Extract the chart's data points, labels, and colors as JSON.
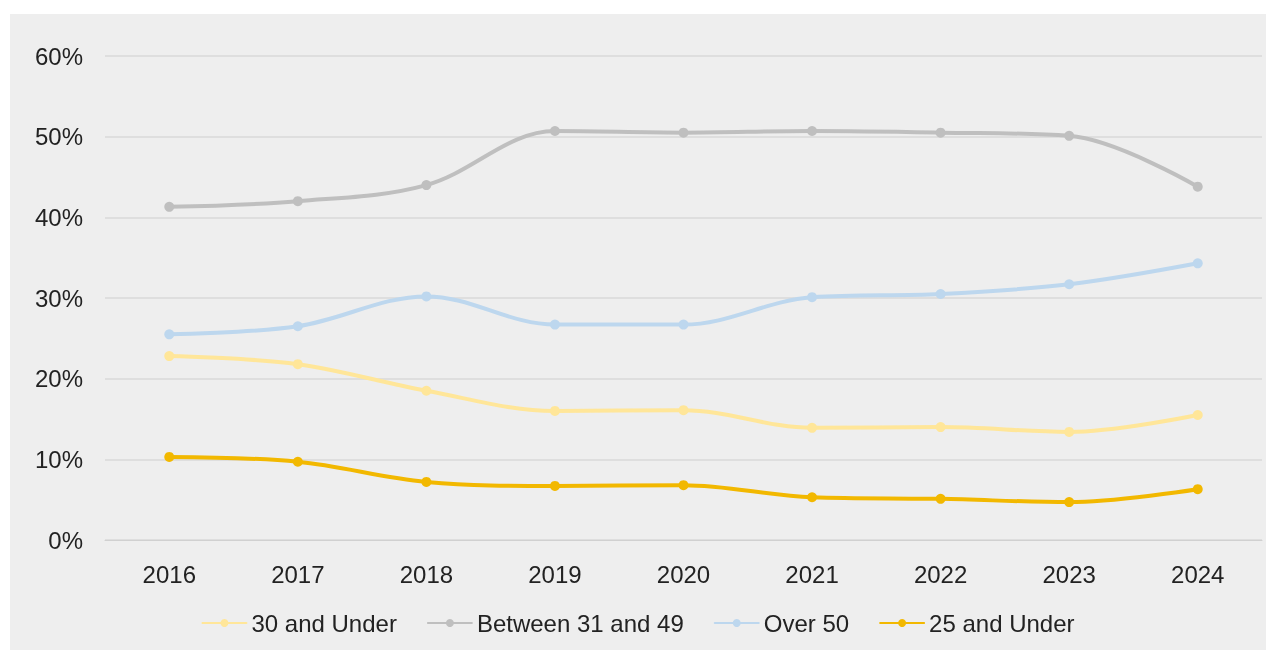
{
  "chart_data": {
    "type": "line",
    "categories": [
      "2016",
      "2017",
      "2018",
      "2019",
      "2020",
      "2021",
      "2022",
      "2023",
      "2024"
    ],
    "series": [
      {
        "name": "30 and Under",
        "color": "#ffe699",
        "values": [
          22.8,
          21.8,
          18.5,
          16.0,
          16.1,
          13.9,
          14.0,
          13.4,
          15.5
        ]
      },
      {
        "name": "Between 31 and 49",
        "color": "#bfbfbf",
        "values": [
          41.3,
          42.0,
          44.0,
          50.7,
          50.5,
          50.7,
          50.5,
          50.1,
          43.8
        ]
      },
      {
        "name": "Over 50",
        "color": "#bdd7ee",
        "values": [
          25.5,
          26.5,
          30.2,
          26.7,
          26.7,
          30.1,
          30.5,
          31.7,
          34.3
        ]
      },
      {
        "name": "25 and Under",
        "color": "#f2b800",
        "values": [
          10.3,
          9.7,
          7.2,
          6.7,
          6.8,
          5.3,
          5.1,
          4.7,
          6.3
        ]
      }
    ],
    "ylim": [
      0,
      60
    ],
    "yticks": [
      {
        "value": 0,
        "label": "0%"
      },
      {
        "value": 10,
        "label": "10%"
      },
      {
        "value": 20,
        "label": "20%"
      },
      {
        "value": 30,
        "label": "30%"
      },
      {
        "value": 40,
        "label": "40%"
      },
      {
        "value": 50,
        "label": "50%"
      },
      {
        "value": 60,
        "label": "60%"
      }
    ],
    "grid": "y",
    "legend": "bottom",
    "marker": "circle",
    "line_style": "solid"
  }
}
